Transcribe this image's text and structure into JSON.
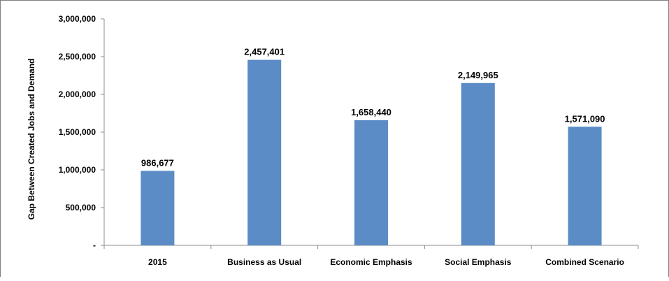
{
  "chart_data": {
    "type": "bar",
    "title": "",
    "xlabel": "",
    "ylabel": "Gap Between Created Jobs and Demand",
    "categories": [
      "2015",
      "Business as Usual",
      "Economic Emphasis",
      "Social Emphasis",
      "Combined Scenario"
    ],
    "values": [
      986677,
      2457401,
      1658440,
      2149965,
      1571090
    ],
    "data_labels": [
      "986,677",
      "2,457,401",
      "1,658,440",
      "2,149,965",
      "1,571,090"
    ],
    "ylim": [
      0,
      3000000
    ],
    "yticks": [
      0,
      500000,
      1000000,
      1500000,
      2000000,
      2500000,
      3000000
    ],
    "ytick_labels": [
      "-",
      "500,000",
      "1,000,000",
      "1,500,000",
      "2,000,000",
      "2,500,000",
      "3,000,000"
    ],
    "grid": false,
    "legend": "none",
    "bar_color": "#5b8cc5",
    "axis_color": "#8c8c8c"
  }
}
